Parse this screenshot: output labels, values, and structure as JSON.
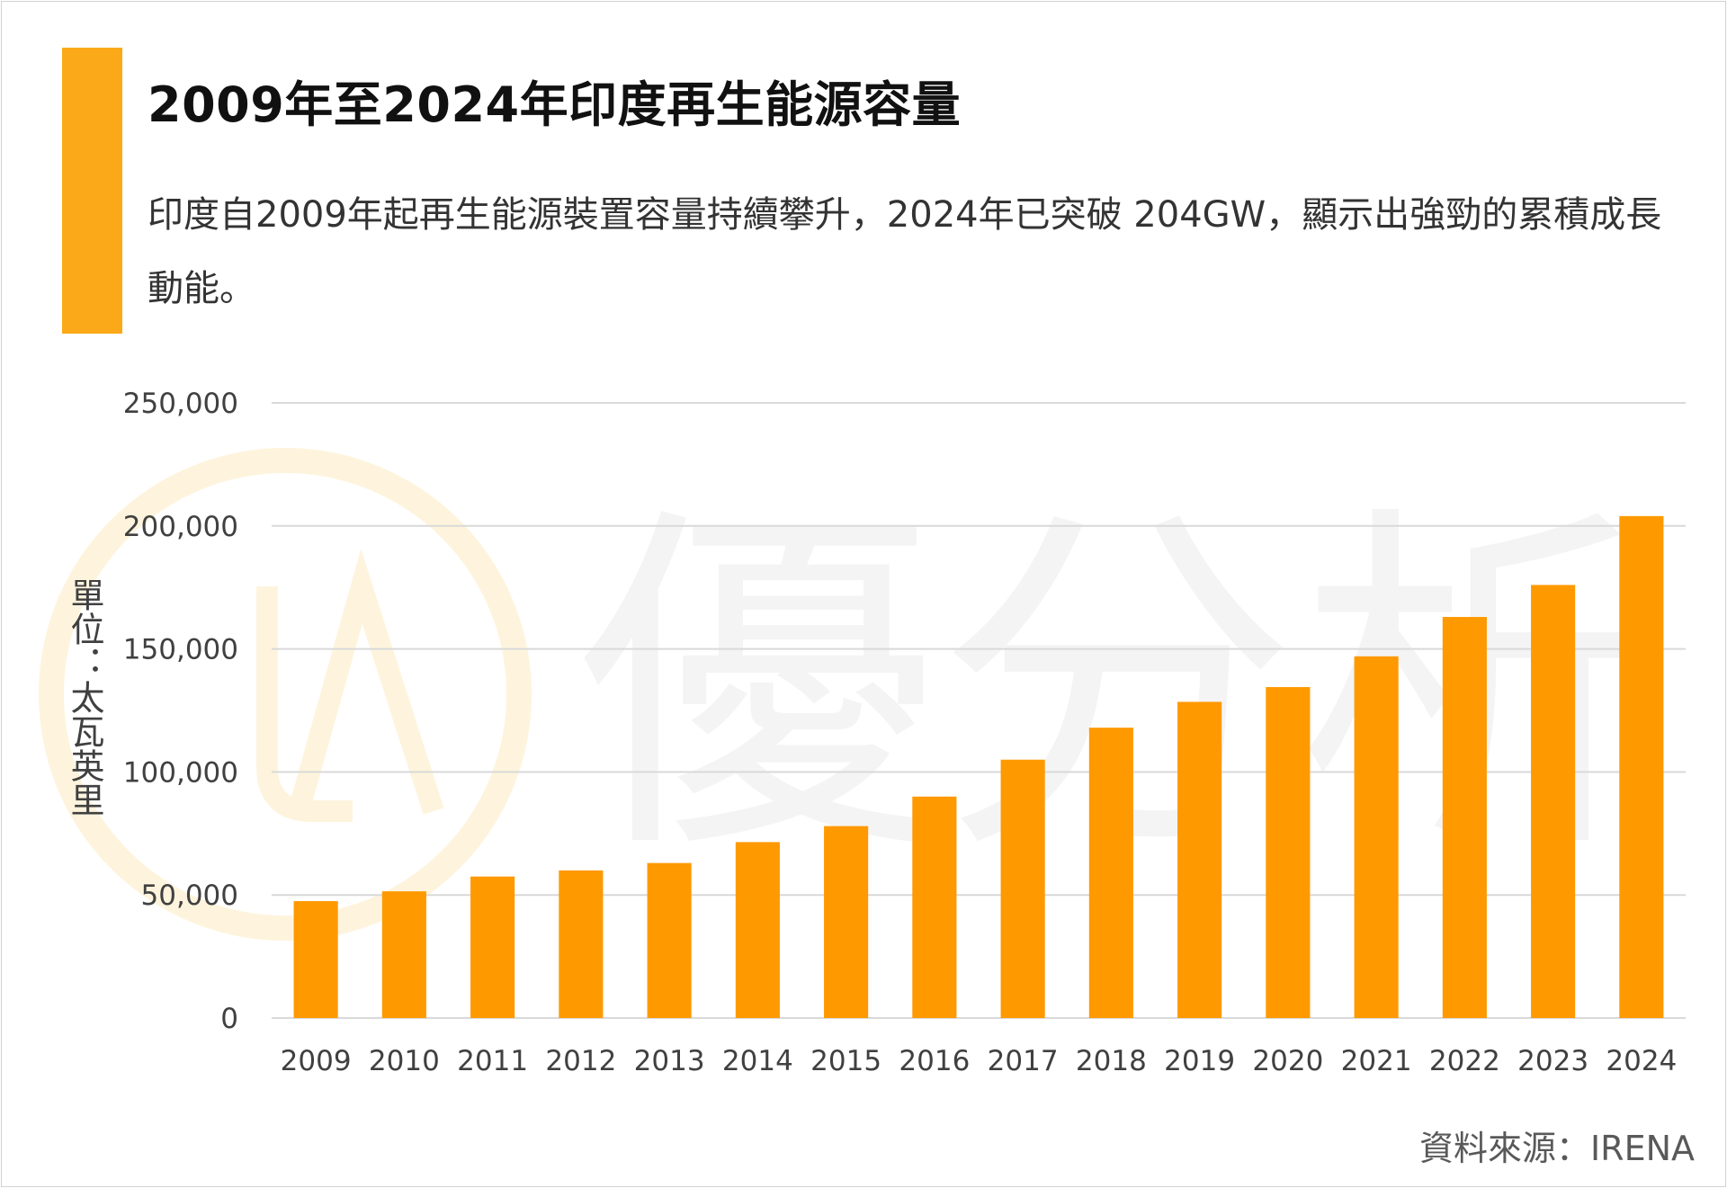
{
  "title": "2009年至2024年印度再生能源容量",
  "subtitle": "印度自2009年起再生能源裝置容量持續攀升，2024年已突破 204GW，顯示出強勁的累積成長動能。",
  "unit_label": "單位：太瓦英里",
  "source": "資料來源：IRENA",
  "watermark_text": "優分析",
  "colors": {
    "accent": "#FBA919",
    "bar": "#FF9900",
    "grid": "#D9D9D9",
    "watermark": "#F4F4F4",
    "watermark_logo": "#FEF4DD"
  },
  "chart_data": {
    "type": "bar",
    "categories": [
      "2009",
      "2010",
      "2011",
      "2012",
      "2013",
      "2014",
      "2015",
      "2016",
      "2017",
      "2018",
      "2019",
      "2020",
      "2021",
      "2022",
      "2023",
      "2024"
    ],
    "series": [
      {
        "values": [
          47500,
          51500,
          57500,
          60000,
          63000,
          71500,
          78000,
          90000,
          105000,
          118000,
          128500,
          134500,
          147000,
          163000,
          176000,
          204000
        ]
      }
    ],
    "ylim": [
      0,
      250000
    ],
    "yticks": [
      "0",
      "50,000",
      "100,000",
      "150,000",
      "200,000",
      "250,000"
    ],
    "ytick_values": [
      0,
      50000,
      100000,
      150000,
      200000,
      250000
    ],
    "grid": true,
    "legend": "none"
  }
}
